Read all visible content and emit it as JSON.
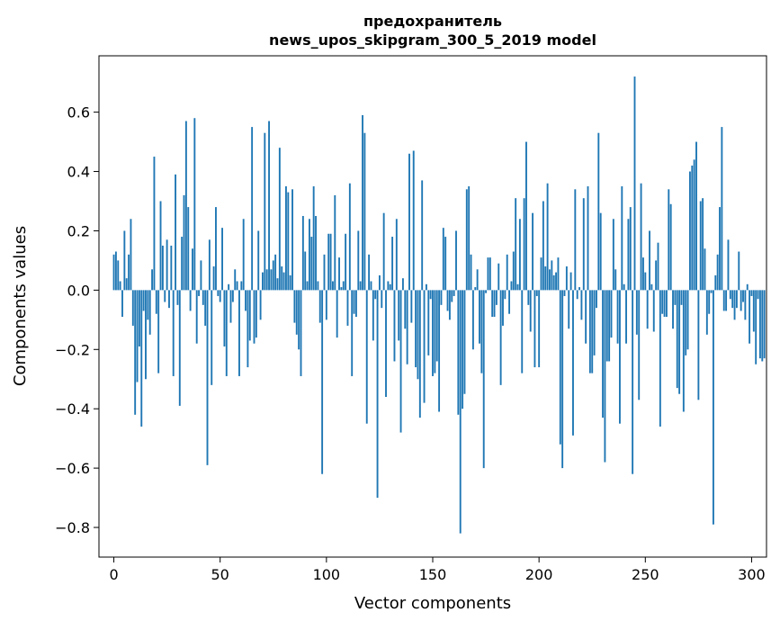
{
  "chart_data": {
    "type": "bar",
    "title_lines": [
      "предохранитель",
      "news_upos_skipgram_300_5_2019 model"
    ],
    "xlabel": "Vector components",
    "ylabel": "Components values",
    "xlim": [
      -7,
      307
    ],
    "ylim": [
      -0.9,
      0.79
    ],
    "xticks": [
      0,
      50,
      100,
      150,
      200,
      250,
      300
    ],
    "xtick_labels": [
      "0",
      "50",
      "100",
      "150",
      "200",
      "250",
      "300"
    ],
    "yticks": [
      -0.8,
      -0.6,
      -0.4,
      -0.2,
      0.0,
      0.2,
      0.4,
      0.6
    ],
    "ytick_labels": [
      "−0.8",
      "−0.6",
      "−0.4",
      "−0.2",
      "0.0",
      "0.2",
      "0.4",
      "0.6"
    ],
    "bar_color": "#1f77b4",
    "values": [
      0.12,
      0.13,
      0.1,
      0.03,
      -0.09,
      0.2,
      0.04,
      0.12,
      0.24,
      -0.12,
      -0.42,
      -0.31,
      -0.19,
      -0.46,
      -0.07,
      -0.3,
      -0.1,
      -0.15,
      0.07,
      0.45,
      -0.08,
      -0.28,
      0.3,
      0.15,
      -0.04,
      0.17,
      -0.06,
      0.15,
      -0.29,
      0.39,
      -0.05,
      -0.39,
      0.18,
      0.32,
      0.57,
      0.28,
      -0.07,
      0.14,
      0.58,
      -0.18,
      -0.02,
      0.1,
      -0.05,
      -0.12,
      -0.59,
      0.17,
      -0.32,
      0.08,
      0.28,
      -0.02,
      -0.04,
      0.21,
      -0.19,
      -0.29,
      0.02,
      -0.11,
      -0.04,
      0.07,
      0.03,
      -0.29,
      0.03,
      0.24,
      -0.07,
      -0.26,
      -0.17,
      0.55,
      -0.18,
      -0.16,
      0.2,
      -0.1,
      0.06,
      0.53,
      0.07,
      0.57,
      0.07,
      0.1,
      0.12,
      0.04,
      0.48,
      0.08,
      0.06,
      0.35,
      0.33,
      0.05,
      0.34,
      -0.11,
      -0.15,
      -0.2,
      -0.29,
      0.25,
      0.13,
      0.03,
      0.24,
      0.18,
      0.35,
      0.25,
      0.03,
      -0.11,
      -0.62,
      0.12,
      -0.1,
      0.19,
      0.19,
      0.03,
      0.32,
      -0.16,
      0.11,
      0.01,
      0.03,
      0.19,
      -0.12,
      0.36,
      -0.29,
      -0.08,
      -0.09,
      0.2,
      0.03,
      0.59,
      0.53,
      -0.45,
      0.12,
      0.03,
      -0.17,
      -0.03,
      -0.7,
      0.05,
      -0.06,
      0.26,
      -0.36,
      0.03,
      0.02,
      0.18,
      -0.24,
      0.24,
      -0.17,
      -0.48,
      0.04,
      -0.13,
      -0.25,
      0.46,
      -0.11,
      0.47,
      -0.26,
      -0.3,
      -0.43,
      0.37,
      -0.38,
      0.02,
      -0.22,
      -0.03,
      -0.29,
      -0.28,
      -0.24,
      -0.41,
      -0.05,
      0.21,
      0.18,
      -0.07,
      -0.1,
      -0.04,
      -0.02,
      0.2,
      -0.42,
      -0.82,
      -0.4,
      -0.35,
      0.34,
      0.35,
      0.12,
      -0.2,
      0.01,
      0.07,
      -0.18,
      -0.28,
      -0.6,
      -0.01,
      0.11,
      0.11,
      -0.09,
      -0.09,
      -0.05,
      0.09,
      -0.32,
      -0.12,
      -0.03,
      0.12,
      -0.08,
      0.03,
      0.13,
      0.31,
      0.02,
      0.24,
      -0.28,
      0.31,
      0.5,
      -0.05,
      -0.14,
      0.26,
      -0.26,
      -0.02,
      -0.26,
      0.11,
      0.3,
      0.08,
      0.36,
      0.07,
      0.1,
      0.05,
      0.06,
      0.11,
      -0.52,
      -0.6,
      -0.02,
      0.08,
      -0.13,
      0.06,
      -0.49,
      0.34,
      -0.03,
      0.01,
      -0.1,
      0.31,
      -0.18,
      0.35,
      -0.28,
      -0.28,
      -0.22,
      -0.06,
      0.53,
      0.26,
      -0.43,
      -0.58,
      -0.24,
      -0.24,
      -0.16,
      0.24,
      0.07,
      -0.18,
      -0.45,
      0.35,
      0.02,
      -0.18,
      0.24,
      0.28,
      -0.62,
      0.72,
      -0.15,
      -0.37,
      0.36,
      0.11,
      0.06,
      -0.13,
      0.2,
      0.02,
      -0.14,
      0.1,
      0.16,
      -0.46,
      -0.08,
      -0.09,
      -0.09,
      0.34,
      0.29,
      -0.13,
      -0.05,
      -0.33,
      -0.35,
      -0.05,
      -0.41,
      -0.22,
      -0.2,
      0.4,
      0.42,
      0.44,
      0.5,
      -0.37,
      0.3,
      0.31,
      0.14,
      -0.15,
      -0.08,
      -0.01,
      -0.79,
      0.05,
      0.12,
      0.28,
      0.55,
      -0.07,
      -0.07,
      0.17,
      -0.03,
      -0.06,
      -0.1,
      -0.06,
      0.13,
      -0.07,
      -0.04,
      -0.1,
      0.02,
      -0.18,
      -0.02,
      -0.14,
      -0.25,
      -0.03,
      -0.23,
      -0.24,
      -0.23
    ]
  }
}
